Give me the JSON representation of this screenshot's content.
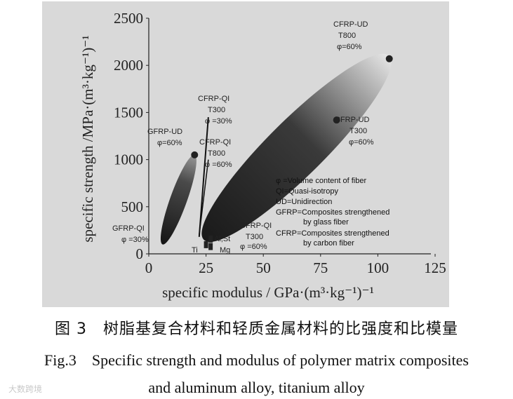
{
  "chart_data": {
    "type": "scatter",
    "title": "",
    "xlabel": "specific modulus / GPa·(m³·kg⁻¹)⁻¹",
    "ylabel": "specific strength /MPa·(m³·kg⁻¹)⁻¹",
    "xlim": [
      0,
      125
    ],
    "ylim": [
      0,
      2500
    ],
    "x_ticks": [
      "0",
      "25",
      "50",
      "75",
      "100",
      "125"
    ],
    "y_ticks": [
      "0",
      "500",
      "1000",
      "1500",
      "2000",
      "2500"
    ],
    "regions": [
      {
        "name": "GFRP-QI φ=30% to GFRP-UD φ=60%",
        "from": [
          6,
          100
        ],
        "to": [
          20,
          1050
        ]
      },
      {
        "name": "CFRP-QI T300 φ=60% to CFRP-UD T800 φ=60%",
        "from": [
          24,
          150
        ],
        "to": [
          105,
          2100
        ]
      },
      {
        "name": "CFRP-QI T300 φ=30% line",
        "from": [
          22,
          180
        ],
        "to": [
          26,
          1450
        ]
      }
    ],
    "points": [
      {
        "label": "CFRP-UD T800 φ=60%",
        "x": 105,
        "y": 2070
      },
      {
        "label": "CFRP-UD T300 φ=60%",
        "x": 82,
        "y": 1420
      },
      {
        "label": "GFRP-UD φ=60%",
        "x": 20,
        "y": 1050
      },
      {
        "label": "Al,St",
        "x": 27,
        "y": 150
      },
      {
        "label": "Ti",
        "x": 25,
        "y": 90
      },
      {
        "label": "Mg",
        "x": 27,
        "y": 70
      }
    ],
    "annotations": {
      "cfrp_ud_t800": [
        "CFRP-UD",
        "T800",
        "φ=60%"
      ],
      "cfrp_ud_t300": [
        "CFRP-UD",
        "T300",
        "φ=60%"
      ],
      "cfrp_qi_t300_30": [
        "CFRP-QI",
        "T300",
        "φ =30%"
      ],
      "gfrp_ud": [
        "GFRP-UD",
        "φ=60%"
      ],
      "cfrp_qi_t800": [
        "CFRP-QI",
        "T800",
        "φ =60%"
      ],
      "gfrp_qi": [
        "GFRP-QI",
        "φ =30%"
      ],
      "cfrp_qi_t300_60": [
        "CFRP-QI",
        "T300",
        "φ =60%"
      ],
      "al_st": "Al,St",
      "ti": "Ti",
      "mg": "Mg"
    },
    "legend": [
      "φ =Volume content of fiber",
      "QI=Quasi-isotropy",
      "UD=Unidirection",
      "GFRP=Composites strengthened",
      "by glass fiber",
      "CFRP=Composites strengthened",
      "by carbon fiber"
    ],
    "colors": {
      "panel": "#d9d9d9",
      "ink": "#111111"
    }
  },
  "caption": {
    "cn": "图 3　树脂基复合材料和轻质金属材料的比强度和比模量",
    "en_line1": "Fig.3　Specific strength and modulus of polymer matrix composites",
    "en_line2": "and aluminum alloy, titanium alloy"
  },
  "watermark": "大数跨境"
}
